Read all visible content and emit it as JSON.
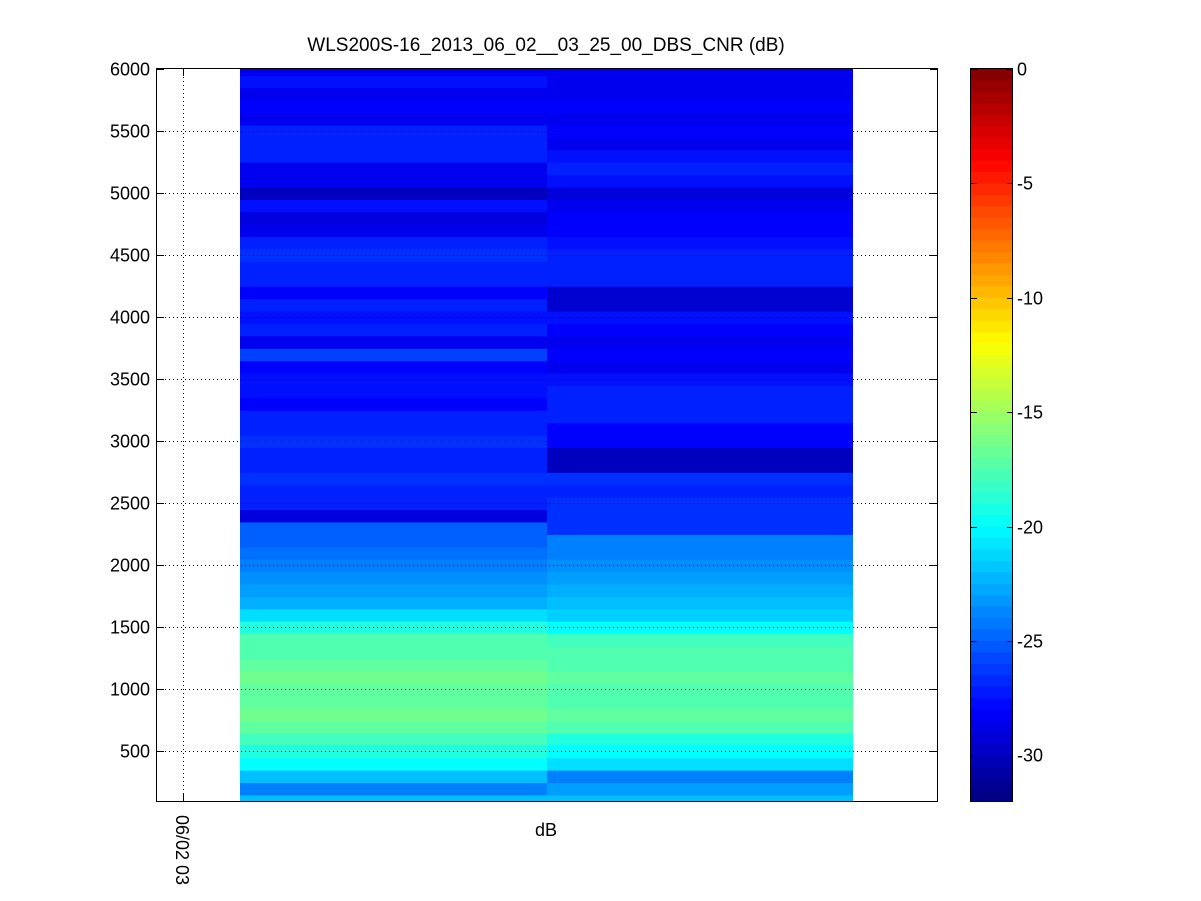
{
  "chart_data": {
    "type": "heatmap",
    "title": "WLS200S-16_2013_06_02__03_25_00_DBS_CNR (dB)",
    "xlabel": "dB",
    "ylabel": "",
    "ylim": [
      100,
      6000
    ],
    "yticks": [
      500,
      1000,
      1500,
      2000,
      2500,
      3000,
      3500,
      4000,
      4500,
      5000,
      5500,
      6000
    ],
    "xtick_labels": [
      "06/02 03"
    ],
    "grid": true,
    "colorbar": {
      "colormap": "jet",
      "range": [
        -32,
        0
      ],
      "ticks": [
        0,
        -5,
        -10,
        -15,
        -20,
        -25,
        -30
      ]
    },
    "columns": [
      "left",
      "right"
    ],
    "height_step": 100,
    "heights": [
      100,
      200,
      300,
      400,
      500,
      600,
      700,
      800,
      900,
      1000,
      1100,
      1200,
      1300,
      1400,
      1500,
      1600,
      1700,
      1800,
      1900,
      2000,
      2100,
      2200,
      2300,
      2400,
      2500,
      2600,
      2700,
      2800,
      2900,
      3000,
      3100,
      3200,
      3300,
      3400,
      3500,
      3600,
      3700,
      3800,
      3900,
      4000,
      4100,
      4200,
      4300,
      4400,
      4500,
      4600,
      4700,
      4800,
      4900,
      5000,
      5100,
      5200,
      5300,
      5400,
      5500,
      5600,
      5700,
      5800,
      5900,
      6000
    ],
    "cnr_db": [
      [
        -22,
        -24,
        -22,
        -20,
        -19,
        -18,
        -17,
        -16.5,
        -17,
        -17,
        -16.5,
        -17,
        -17.5,
        -17.5,
        -19,
        -21,
        -22.5,
        -23,
        -23.5,
        -24,
        -24.5,
        -25,
        -25,
        -29,
        -27,
        -27,
        -26.5,
        -27,
        -27,
        -26.5,
        -27,
        -27,
        -28,
        -27.5,
        -27.5,
        -28,
        -26,
        -28.5,
        -27,
        -27.5,
        -27,
        -28,
        -27,
        -27,
        -26.5,
        -27,
        -28.5,
        -29,
        -27.5,
        -30,
        -28.5,
        -28.5,
        -27,
        -27,
        -27,
        -28.5,
        -28,
        -28.5,
        -27.5,
        -28.5
      ],
      [
        -22,
        -23,
        -24,
        -21,
        -20,
        -19,
        -17.5,
        -17,
        -17.5,
        -17.5,
        -17,
        -17.5,
        -17.5,
        -18,
        -20,
        -21.5,
        -22,
        -22.5,
        -23,
        -23.5,
        -24,
        -24,
        -26.5,
        -26.5,
        -26.5,
        -27,
        -26.5,
        -30,
        -30,
        -28,
        -28,
        -27,
        -27,
        -27,
        -27.5,
        -28.5,
        -28,
        -28.5,
        -28,
        -27.5,
        -29.5,
        -29.5,
        -27,
        -27,
        -27,
        -27.5,
        -28,
        -28,
        -28.5,
        -29,
        -27.5,
        -27,
        -27.5,
        -28.5,
        -28,
        -28.5,
        -28,
        -28.5,
        -28.5,
        -28.5
      ]
    ]
  }
}
